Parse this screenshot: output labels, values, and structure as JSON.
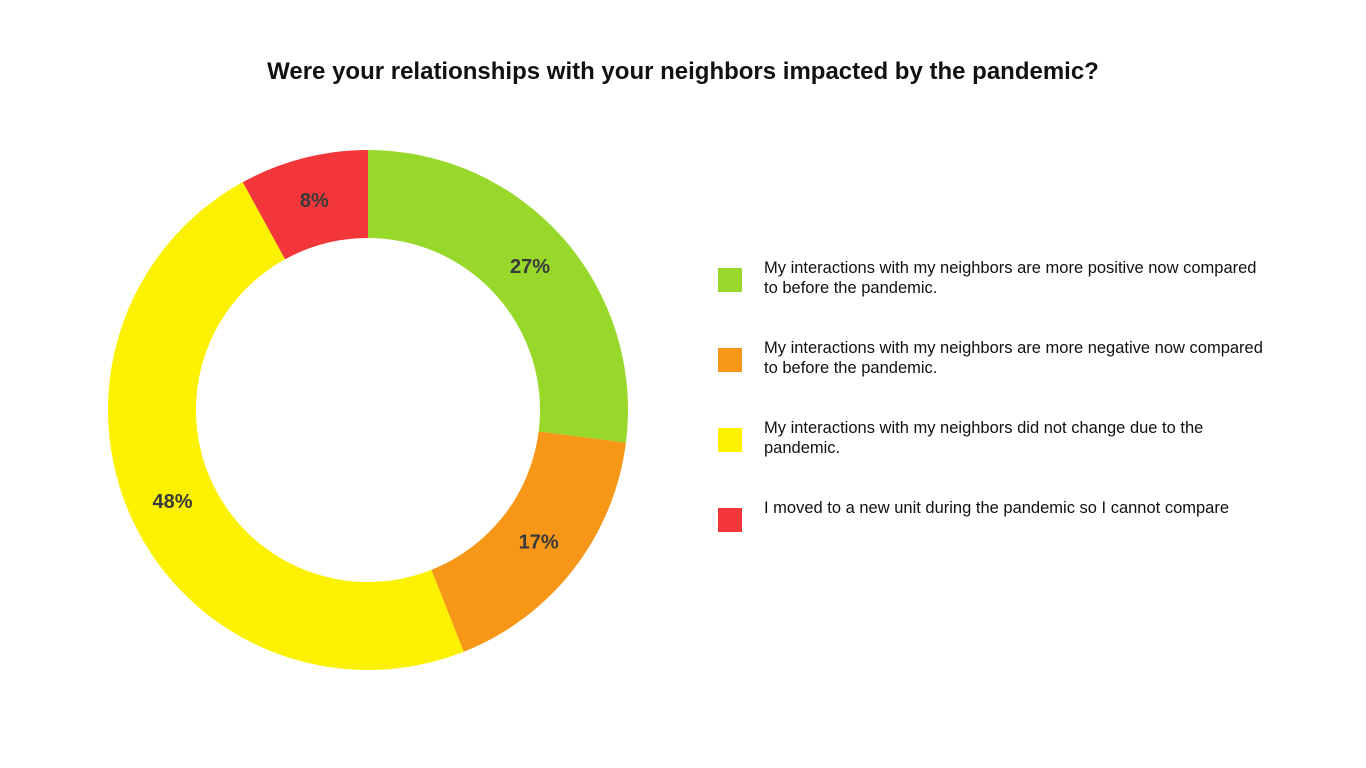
{
  "chart_data": {
    "type": "pie",
    "donut": true,
    "title": "Were your relationships with your neighbors impacted by the pandemic?",
    "slices": [
      {
        "name": "My interactions with my neighbors are more positive now compared to before the pandemic.",
        "value": 27,
        "label": "27%",
        "color": "#97d82b"
      },
      {
        "name": "My interactions with my neighbors are more negative now compared to before the pandemic.",
        "value": 17,
        "label": "17%",
        "color": "#f69717"
      },
      {
        "name": "My interactions with my neighbors did not change due to the pandemic.",
        "value": 48,
        "label": "48%",
        "color": "#fcf200"
      },
      {
        "name": "I moved to a new unit during the pandemic so I cannot compare",
        "value": 8,
        "label": "8%",
        "color": "#f2363a"
      }
    ],
    "legend_position": "right"
  }
}
